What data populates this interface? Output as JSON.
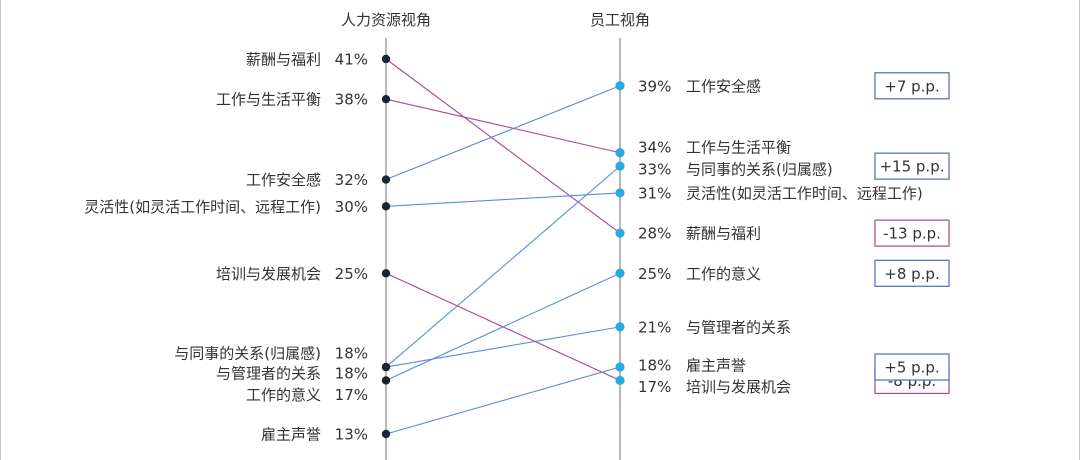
{
  "chart_data": {
    "type": "slope",
    "title": "",
    "columns": {
      "left": "人力资源视角",
      "right": "员工视角"
    },
    "unit": "%",
    "items": [
      {
        "label": "薪酬与福利",
        "hr": 41,
        "employee": 28,
        "diff": "-13 p.p.",
        "direction": "down"
      },
      {
        "label": "工作与生活平衡",
        "hr": 38,
        "employee": 34,
        "diff": "",
        "direction": "down"
      },
      {
        "label": "工作安全感",
        "hr": 32,
        "employee": 39,
        "diff": "+7 p.p.",
        "direction": "up"
      },
      {
        "label": "灵活性(如灵活工作时间、远程工作)",
        "hr": 30,
        "employee": 31,
        "diff": "",
        "direction": "up"
      },
      {
        "label": "培训与发展机会",
        "hr": 25,
        "employee": 17,
        "diff": "-8 p.p.",
        "direction": "down"
      },
      {
        "label": "与同事的关系(归属感)",
        "hr": 18,
        "employee": 33,
        "diff": "+15 p.p.",
        "direction": "up"
      },
      {
        "label": "与管理者的关系",
        "hr": 18,
        "employee": 21,
        "diff": "",
        "direction": "up"
      },
      {
        "label": "工作的意义",
        "hr": 17,
        "employee": 25,
        "diff": "+8 p.p.",
        "direction": "up"
      },
      {
        "label": "雇主声誉",
        "hr": 13,
        "employee": 18,
        "diff": "+5 p.p.",
        "direction": "up"
      }
    ],
    "colors": {
      "up_line": "#5b8ad6",
      "down_line": "#a8498f",
      "left_dot": "#1b2433",
      "right_dot": "#29abe2",
      "axis": "#888888",
      "up_box": "#4a6fb5",
      "down_box": "#a8498f"
    }
  }
}
